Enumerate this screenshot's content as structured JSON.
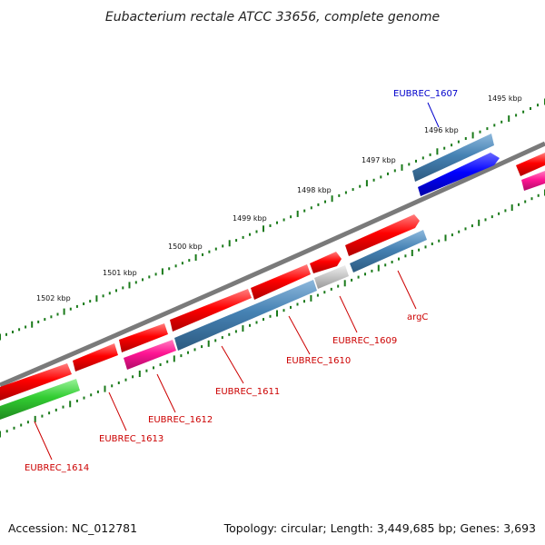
{
  "title": "Eubacterium rectale ATCC 33656, complete genome",
  "footer": {
    "accession": "Accession: NC_012781",
    "summary": "Topology: circular; Length: 3,449,685 bp; Genes: 3,693"
  },
  "colors": {
    "backbone": "#7a7a7a",
    "cds_forward": "#ff0000",
    "cds_reverse_steel": "#4682b4",
    "highlight_blue": "#0000ff",
    "pink": "#ff1493",
    "green": "#32cd32",
    "gray_feature": "#c8c8c8",
    "tick": "#1a7a1a",
    "label_red": "#cc0000",
    "label_blue": "#0000cc"
  },
  "scale": {
    "unit": "kbp",
    "ticks": [
      "1495 kbp",
      "1496 kbp",
      "1497 kbp",
      "1498 kbp",
      "1499 kbp",
      "1500 kbp",
      "1501 kbp",
      "1502 kbp"
    ]
  },
  "gene_labels": [
    {
      "text": "EUBREC_1607",
      "color": "label_blue"
    },
    {
      "text": "argC",
      "color": "label_red"
    },
    {
      "text": "EUBREC_1609",
      "color": "label_red"
    },
    {
      "text": "EUBREC_1610",
      "color": "label_red"
    },
    {
      "text": "EUBREC_1611",
      "color": "label_red"
    },
    {
      "text": "EUBREC_1612",
      "color": "label_red"
    },
    {
      "text": "EUBREC_1613",
      "color": "label_red"
    },
    {
      "text": "EUBREC_1614",
      "color": "label_red"
    }
  ]
}
